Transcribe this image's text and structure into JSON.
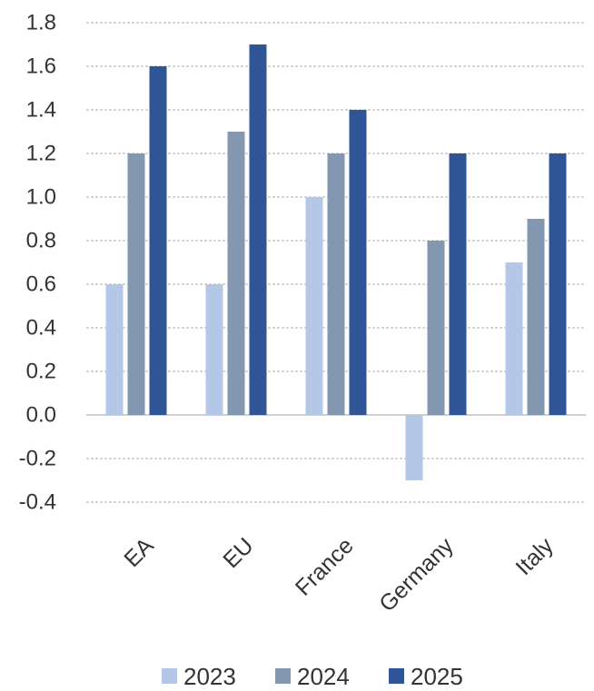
{
  "chart_data": {
    "type": "bar",
    "categories": [
      "EA",
      "EU",
      "France",
      "Germany",
      "Italy"
    ],
    "series": [
      {
        "name": "2023",
        "values": [
          0.6,
          0.6,
          1.0,
          -0.3,
          0.7
        ],
        "color": "#b4c7e7"
      },
      {
        "name": "2024",
        "values": [
          1.2,
          1.3,
          1.2,
          0.8,
          0.9
        ],
        "color": "#8497b0"
      },
      {
        "name": "2025",
        "values": [
          1.6,
          1.7,
          1.4,
          1.2,
          1.2
        ],
        "color": "#2f5597"
      }
    ],
    "y_ticks": [
      "1.8",
      "1.6",
      "1.4",
      "1.2",
      "1.0",
      "0.8",
      "0.6",
      "0.4",
      "0.2",
      "0.0",
      "-0.2",
      "-0.4"
    ],
    "ylim": [
      -0.4,
      1.8
    ],
    "grid": true,
    "legend_position": "bottom"
  }
}
